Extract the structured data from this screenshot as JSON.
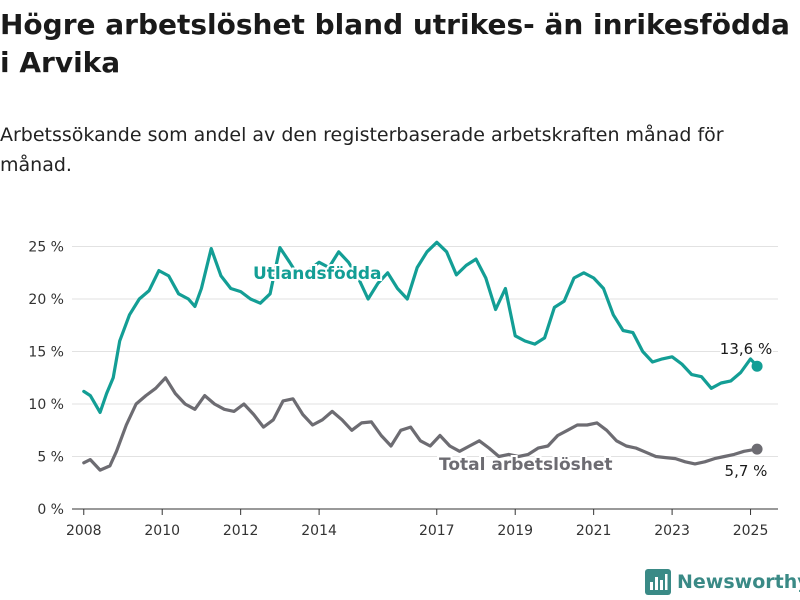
{
  "title": "Högre arbetslöshet bland utrikes- än inrikesfödda i Arvika",
  "subtitle": "Arbetssökande som andel av den registerbaserade arbetskraften månad för månad.",
  "brand": {
    "name": "Newsworthy",
    "color": "#3a8a86"
  },
  "chart_data": {
    "type": "line",
    "x_ticks": [
      "2008",
      "2010",
      "2012",
      "2014",
      "2017",
      "2019",
      "2021",
      "2023",
      "2025"
    ],
    "y_ticks": [
      "0 %",
      "5 %",
      "10 %",
      "15 %",
      "20 %",
      "25 %"
    ],
    "ylim": [
      0,
      26
    ],
    "grid": true,
    "series": [
      {
        "name": "Utlandsfödda",
        "color": "#139e95",
        "end_label": "13,6 %",
        "points": [
          [
            "2008-01",
            11.2
          ],
          [
            "2008-03",
            10.8
          ],
          [
            "2008-06",
            9.2
          ],
          [
            "2008-08",
            11.0
          ],
          [
            "2008-10",
            12.5
          ],
          [
            "2008-12",
            16.0
          ],
          [
            "2009-03",
            18.5
          ],
          [
            "2009-06",
            20.0
          ],
          [
            "2009-09",
            20.8
          ],
          [
            "2009-12",
            22.7
          ],
          [
            "2010-03",
            22.2
          ],
          [
            "2010-06",
            20.5
          ],
          [
            "2010-09",
            20.0
          ],
          [
            "2010-11",
            19.3
          ],
          [
            "2011-01",
            21.0
          ],
          [
            "2011-04",
            24.8
          ],
          [
            "2011-07",
            22.2
          ],
          [
            "2011-10",
            21.0
          ],
          [
            "2012-01",
            20.7
          ],
          [
            "2012-04",
            20.0
          ],
          [
            "2012-07",
            19.6
          ],
          [
            "2012-10",
            20.5
          ],
          [
            "2013-01",
            24.9
          ],
          [
            "2013-04",
            23.5
          ],
          [
            "2013-07",
            22.0
          ],
          [
            "2013-10",
            22.8
          ],
          [
            "2014-01",
            23.5
          ],
          [
            "2014-04",
            23.0
          ],
          [
            "2014-07",
            24.5
          ],
          [
            "2014-10",
            23.5
          ],
          [
            "2015-01",
            22.0
          ],
          [
            "2015-04",
            20.0
          ],
          [
            "2015-07",
            21.5
          ],
          [
            "2015-10",
            22.5
          ],
          [
            "2016-01",
            21.0
          ],
          [
            "2016-04",
            20.0
          ],
          [
            "2016-07",
            23.0
          ],
          [
            "2016-10",
            24.5
          ],
          [
            "2017-01",
            25.4
          ],
          [
            "2017-04",
            24.5
          ],
          [
            "2017-07",
            22.3
          ],
          [
            "2017-10",
            23.2
          ],
          [
            "2018-01",
            23.8
          ],
          [
            "2018-04",
            22.0
          ],
          [
            "2018-07",
            19.0
          ],
          [
            "2018-10",
            21.0
          ],
          [
            "2019-01",
            16.5
          ],
          [
            "2019-04",
            16.0
          ],
          [
            "2019-07",
            15.7
          ],
          [
            "2019-10",
            16.3
          ],
          [
            "2020-01",
            19.2
          ],
          [
            "2020-04",
            19.8
          ],
          [
            "2020-07",
            22.0
          ],
          [
            "2020-10",
            22.5
          ],
          [
            "2021-01",
            22.0
          ],
          [
            "2021-04",
            21.0
          ],
          [
            "2021-07",
            18.5
          ],
          [
            "2021-10",
            17.0
          ],
          [
            "2022-01",
            16.8
          ],
          [
            "2022-04",
            15.0
          ],
          [
            "2022-07",
            14.0
          ],
          [
            "2022-10",
            14.3
          ],
          [
            "2023-01",
            14.5
          ],
          [
            "2023-04",
            13.8
          ],
          [
            "2023-07",
            12.8
          ],
          [
            "2023-10",
            12.6
          ],
          [
            "2024-01",
            11.5
          ],
          [
            "2024-04",
            12.0
          ],
          [
            "2024-07",
            12.2
          ],
          [
            "2024-10",
            13.0
          ],
          [
            "2025-01",
            14.3
          ],
          [
            "2025-03",
            13.6
          ]
        ]
      },
      {
        "name": "Total arbetslöshet",
        "color": "#6d6c72",
        "end_label": "5,7 %",
        "points": [
          [
            "2008-01",
            4.4
          ],
          [
            "2008-03",
            4.7
          ],
          [
            "2008-06",
            3.7
          ],
          [
            "2008-09",
            4.1
          ],
          [
            "2008-11",
            5.5
          ],
          [
            "2009-02",
            8.0
          ],
          [
            "2009-05",
            10.0
          ],
          [
            "2009-08",
            10.8
          ],
          [
            "2009-11",
            11.5
          ],
          [
            "2010-02",
            12.5
          ],
          [
            "2010-05",
            11.0
          ],
          [
            "2010-08",
            10.0
          ],
          [
            "2010-11",
            9.5
          ],
          [
            "2011-02",
            10.8
          ],
          [
            "2011-05",
            10.0
          ],
          [
            "2011-08",
            9.5
          ],
          [
            "2011-11",
            9.3
          ],
          [
            "2012-02",
            10.0
          ],
          [
            "2012-05",
            9.0
          ],
          [
            "2012-08",
            7.8
          ],
          [
            "2012-11",
            8.5
          ],
          [
            "2013-02",
            10.3
          ],
          [
            "2013-05",
            10.5
          ],
          [
            "2013-08",
            9.0
          ],
          [
            "2013-11",
            8.0
          ],
          [
            "2014-02",
            8.5
          ],
          [
            "2014-05",
            9.3
          ],
          [
            "2014-08",
            8.5
          ],
          [
            "2014-11",
            7.5
          ],
          [
            "2015-02",
            8.2
          ],
          [
            "2015-05",
            8.3
          ],
          [
            "2015-08",
            7.0
          ],
          [
            "2015-11",
            6.0
          ],
          [
            "2016-02",
            7.5
          ],
          [
            "2016-05",
            7.8
          ],
          [
            "2016-08",
            6.5
          ],
          [
            "2016-11",
            6.0
          ],
          [
            "2017-02",
            7.0
          ],
          [
            "2017-05",
            6.0
          ],
          [
            "2017-08",
            5.5
          ],
          [
            "2017-11",
            6.0
          ],
          [
            "2018-02",
            6.5
          ],
          [
            "2018-05",
            5.8
          ],
          [
            "2018-08",
            5.0
          ],
          [
            "2018-11",
            5.2
          ],
          [
            "2019-02",
            5.0
          ],
          [
            "2019-05",
            5.2
          ],
          [
            "2019-08",
            5.8
          ],
          [
            "2019-11",
            6.0
          ],
          [
            "2020-02",
            7.0
          ],
          [
            "2020-05",
            7.5
          ],
          [
            "2020-08",
            8.0
          ],
          [
            "2020-11",
            8.0
          ],
          [
            "2021-02",
            8.2
          ],
          [
            "2021-05",
            7.5
          ],
          [
            "2021-08",
            6.5
          ],
          [
            "2021-11",
            6.0
          ],
          [
            "2022-02",
            5.8
          ],
          [
            "2022-05",
            5.4
          ],
          [
            "2022-08",
            5.0
          ],
          [
            "2022-11",
            4.9
          ],
          [
            "2023-02",
            4.8
          ],
          [
            "2023-05",
            4.5
          ],
          [
            "2023-08",
            4.3
          ],
          [
            "2023-11",
            4.5
          ],
          [
            "2024-02",
            4.8
          ],
          [
            "2024-05",
            5.0
          ],
          [
            "2024-08",
            5.2
          ],
          [
            "2024-11",
            5.5
          ],
          [
            "2025-03",
            5.7
          ]
        ]
      }
    ]
  }
}
